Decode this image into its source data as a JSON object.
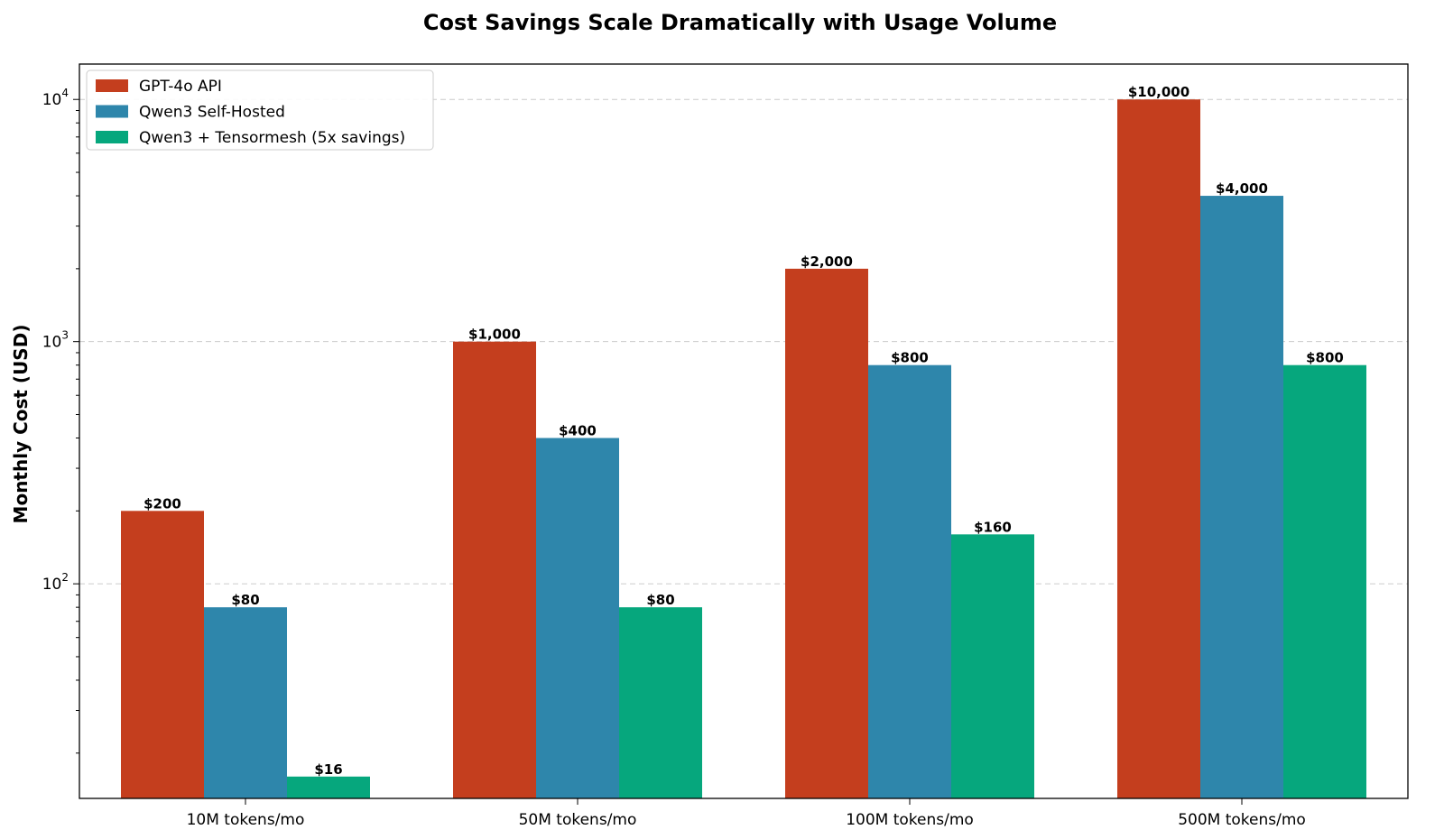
{
  "chart_data": {
    "type": "bar",
    "title": "Cost Savings Scale Dramatically with Usage Volume",
    "xlabel": "",
    "ylabel": "Monthly Cost (USD)",
    "yscale": "log",
    "ylim": [
      13,
      14000
    ],
    "yticks": [
      {
        "value": 100,
        "base": "10",
        "exp": "2"
      },
      {
        "value": 1000,
        "base": "10",
        "exp": "3"
      },
      {
        "value": 10000,
        "base": "10",
        "exp": "4"
      }
    ],
    "grid": "y-major-dashed",
    "legend_position": "top-left",
    "categories": [
      "10M tokens/mo",
      "50M tokens/mo",
      "100M tokens/mo",
      "500M tokens/mo"
    ],
    "series": [
      {
        "name": "GPT-4o API",
        "color": "#c43e1e",
        "values": [
          200,
          1000,
          2000,
          10000
        ],
        "labels": [
          "$200",
          "$1,000",
          "$2,000",
          "$10,000"
        ]
      },
      {
        "name": "Qwen3 Self-Hosted",
        "color": "#2e86ab",
        "values": [
          80,
          400,
          800,
          4000
        ],
        "labels": [
          "$80",
          "$400",
          "$800",
          "$4,000"
        ]
      },
      {
        "name": "Qwen3 + Tensormesh (5x savings)",
        "color": "#06a77d",
        "values": [
          16,
          80,
          160,
          800
        ],
        "labels": [
          "$16",
          "$80",
          "$160",
          "$800"
        ]
      }
    ]
  }
}
